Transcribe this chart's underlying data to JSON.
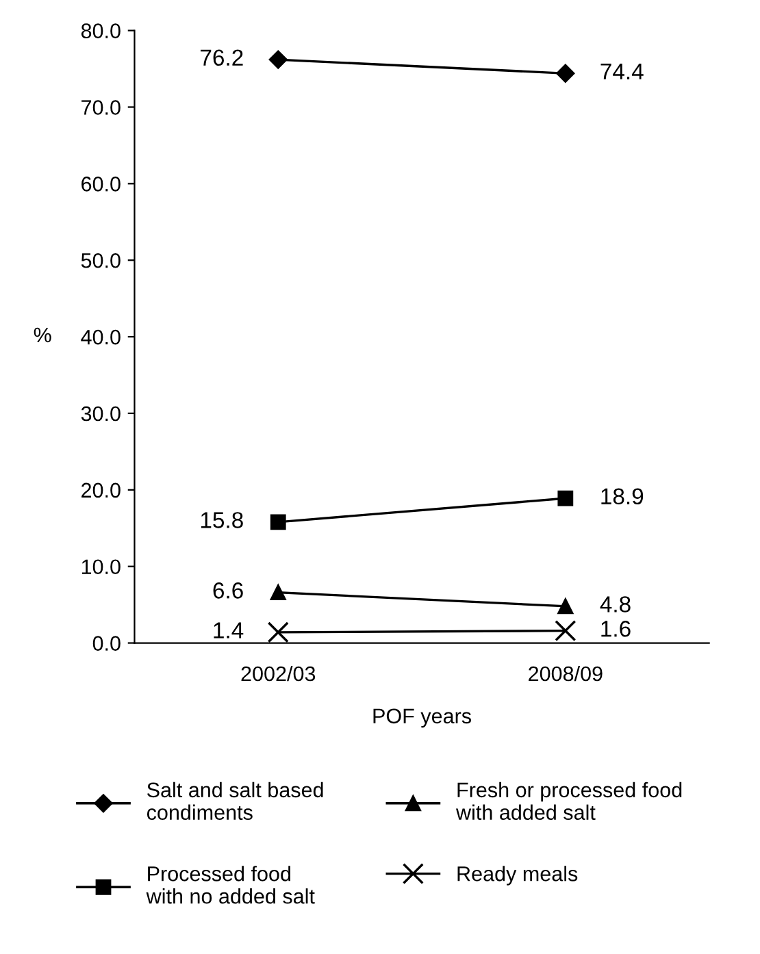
{
  "chart_data": {
    "type": "line",
    "categories": [
      "2002/03",
      "2008/09"
    ],
    "series": [
      {
        "name": "Salt and salt based\ncondiments",
        "color": "#000000",
        "values": [
          76.2,
          74.4
        ],
        "marker": "diamond"
      },
      {
        "name": "Processed food\nwith no added salt",
        "color": "#000000",
        "values": [
          15.8,
          18.9
        ],
        "marker": "square"
      },
      {
        "name": "Fresh or processed food\nwith added salt",
        "color": "#000000",
        "values": [
          6.6,
          4.8
        ],
        "marker": "triangle"
      },
      {
        "name": "Ready meals",
        "color": "#000000",
        "values": [
          1.4,
          1.6
        ],
        "marker": "cross"
      }
    ],
    "ylim": [
      0,
      80
    ],
    "yticks": [
      {
        "value": 0,
        "label": "0.0"
      },
      {
        "value": 10,
        "label": "10.0"
      },
      {
        "value": 20,
        "label": "20.0"
      },
      {
        "value": 30,
        "label": "30.0"
      },
      {
        "value": 40,
        "label": "40.0"
      },
      {
        "value": 50,
        "label": "50.0"
      },
      {
        "value": 60,
        "label": "60.0"
      },
      {
        "value": 70,
        "label": "70.0"
      },
      {
        "value": 80,
        "label": "80.0"
      }
    ],
    "xlabel": "POF years",
    "ylabel": "%",
    "data_labels": true,
    "grid": false,
    "legend": "bottom",
    "line_style": "solid"
  }
}
